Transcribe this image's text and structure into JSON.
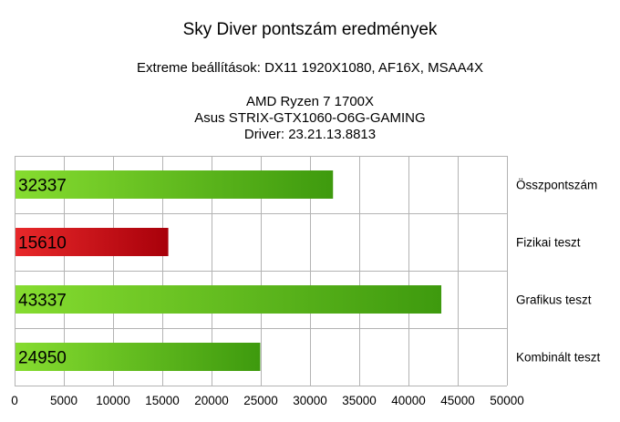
{
  "chart_data": {
    "type": "bar",
    "orientation": "horizontal",
    "title": "Sky Diver pontszám eredmények",
    "subtitle": "Extreme beállítások: DX11 1920X1080, AF16X, MSAA4X",
    "system_lines": [
      "AMD Ryzen 7 1700X",
      "Asus STRIX-GTX1060-O6G-GAMING",
      "Driver: 23.21.13.8813"
    ],
    "categories": [
      "Összpontszám",
      "Fizikai teszt",
      "Grafikus teszt",
      "Kombinált teszt"
    ],
    "values": [
      32337,
      15610,
      43337,
      24950
    ],
    "value_labels": [
      "32337",
      "15610",
      "43337",
      "24950"
    ],
    "bar_colors": [
      "green",
      "red",
      "green",
      "green"
    ],
    "colors": {
      "green_light": "#86dc30",
      "green_dark": "#3e9a0e",
      "red_light": "#e8282a",
      "red_dark": "#a8000a",
      "grid": "#b3b3b3"
    },
    "xlim": [
      0,
      50000
    ],
    "xticks": [
      "0",
      "5000",
      "10000",
      "15000",
      "20000",
      "25000",
      "30000",
      "35000",
      "40000",
      "45000",
      "50000"
    ],
    "tick_values": [
      0,
      5000,
      10000,
      15000,
      20000,
      25000,
      30000,
      35000,
      40000,
      45000,
      50000
    ],
    "grid": true,
    "category_label_side": "right"
  }
}
